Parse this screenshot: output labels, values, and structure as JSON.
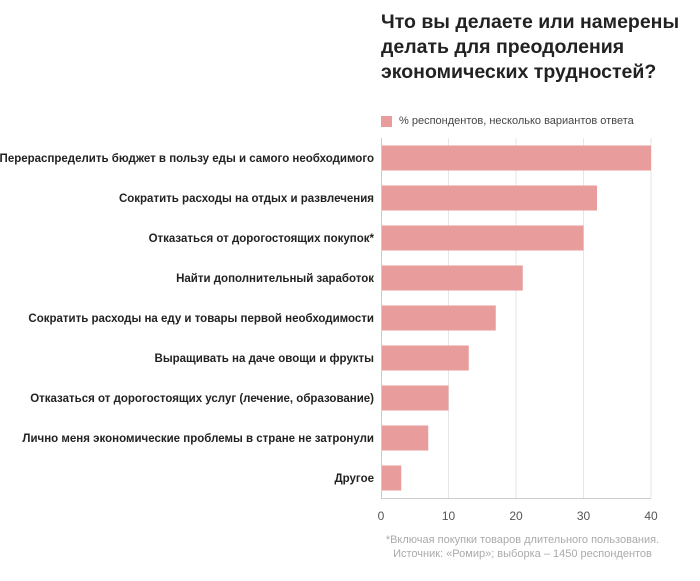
{
  "colors": {
    "bar": "#e89c9c",
    "axis": "#cccccc",
    "grid": "#e6e6e6"
  },
  "chart_data": {
    "type": "bar",
    "orientation": "horizontal",
    "title": "Что вы делаете или намерены делать для преодоления экономических трудностей?",
    "legend": [
      "% респондентов, несколько вариантов ответа"
    ],
    "categories": [
      "Перераспределить бюджет в пользу еды и самого необходимого",
      "Сократить расходы на отдых и развлечения",
      "Отказаться от дорогостоящих покупок*",
      "Найти дополнительный заработок",
      "Сократить расходы на еду и товары первой необходимости",
      "Выращивать на даче овощи и фрукты",
      "Отказаться от дорогостоящих услуг (лечение, образование)",
      "Лично меня экономические проблемы в стране не затронули",
      "Другое"
    ],
    "values": [
      40,
      32,
      30,
      21,
      17,
      13,
      10,
      7,
      3
    ],
    "xlim": [
      0,
      40
    ],
    "xticks": [
      "0",
      "10",
      "20",
      "30",
      "40"
    ],
    "xlabel": "",
    "ylabel": ""
  },
  "footnote": "*Включая покупки товаров длительного пользования. Источник: «Ромир»; выборка – 1450 респондентов"
}
